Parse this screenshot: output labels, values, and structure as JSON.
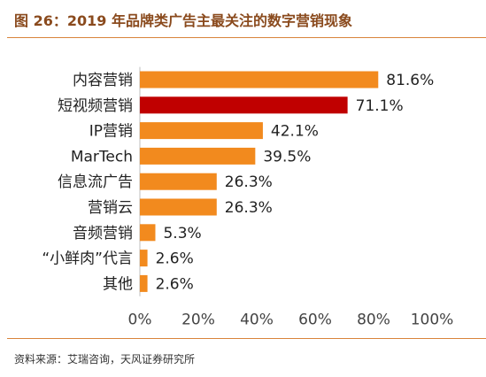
{
  "figure": {
    "title": "图 26：2019 年品牌类广告主最关注的数字营销现象",
    "source": "资料来源：艾瑞咨询，天风证券研究所"
  },
  "chart_data": {
    "type": "bar",
    "orientation": "horizontal",
    "categories": [
      "内容营销",
      "短视频营销",
      "IP营销",
      "MarTech",
      "信息流广告",
      "营销云",
      "音频营销",
      "“小鲜肉”代言",
      "其他"
    ],
    "values": [
      81.6,
      71.1,
      42.1,
      39.5,
      26.3,
      26.3,
      5.3,
      2.6,
      2.6
    ],
    "value_labels": [
      "81.6%",
      "71.1%",
      "42.1%",
      "39.5%",
      "26.3%",
      "26.3%",
      "5.3%",
      "2.6%",
      "2.6%"
    ],
    "xlim": [
      0,
      100
    ],
    "x_ticks": [
      0,
      20,
      40,
      60,
      80,
      100
    ],
    "x_tick_labels": [
      "0%",
      "20%",
      "40%",
      "60%",
      "80%",
      "100%"
    ],
    "grid": false,
    "colors": {
      "default": "#f28a1e",
      "highlight": "#c00000"
    },
    "highlight_index": 1
  }
}
